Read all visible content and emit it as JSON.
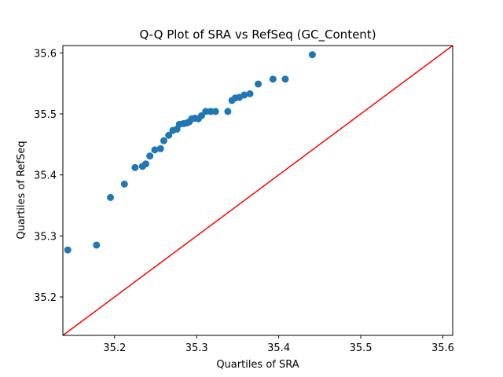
{
  "chart_data": {
    "type": "scatter",
    "title": "Q-Q Plot of SRA vs RefSeq (GC_Content)",
    "xlabel": "Quartiles of SRA",
    "ylabel": "Quartiles of RefSeq",
    "xlim": [
      35.137,
      35.612
    ],
    "ylim": [
      35.137,
      35.612
    ],
    "xticks": [
      "35.2",
      "35.3",
      "35.4",
      "35.5",
      "35.6"
    ],
    "yticks": [
      "35.2",
      "35.3",
      "35.4",
      "35.5",
      "35.6"
    ],
    "grid": false,
    "legend": "none",
    "point_color": "#1f77b4",
    "reference_line": {
      "from": [
        35.137,
        35.137
      ],
      "to": [
        35.612,
        35.612
      ],
      "color": "#ff0000"
    },
    "points": [
      [
        35.143,
        35.277
      ],
      [
        35.178,
        35.285
      ],
      [
        35.195,
        35.363
      ],
      [
        35.212,
        35.385
      ],
      [
        35.225,
        35.412
      ],
      [
        35.234,
        35.414
      ],
      [
        35.238,
        35.418
      ],
      [
        35.243,
        35.431
      ],
      [
        35.249,
        35.441
      ],
      [
        35.256,
        35.443
      ],
      [
        35.26,
        35.456
      ],
      [
        35.266,
        35.465
      ],
      [
        35.271,
        35.473
      ],
      [
        35.276,
        35.475
      ],
      [
        35.279,
        35.483
      ],
      [
        35.284,
        35.484
      ],
      [
        35.288,
        35.485
      ],
      [
        35.291,
        35.487
      ],
      [
        35.294,
        35.492
      ],
      [
        35.298,
        35.493
      ],
      [
        35.302,
        35.492
      ],
      [
        35.306,
        35.497
      ],
      [
        35.311,
        35.504
      ],
      [
        35.317,
        35.504
      ],
      [
        35.323,
        35.504
      ],
      [
        35.338,
        35.504
      ],
      [
        35.343,
        35.522
      ],
      [
        35.347,
        35.526
      ],
      [
        35.352,
        35.527
      ],
      [
        35.358,
        35.531
      ],
      [
        35.365,
        35.533
      ],
      [
        35.375,
        35.549
      ],
      [
        35.393,
        35.557
      ],
      [
        35.408,
        35.557
      ],
      [
        35.441,
        35.597
      ]
    ]
  }
}
